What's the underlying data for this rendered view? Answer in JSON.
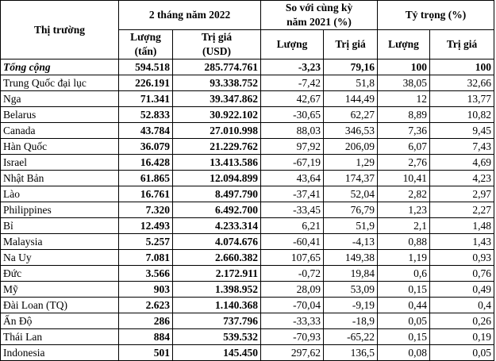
{
  "headers": {
    "market": "Thị trường",
    "period": "2 tháng năm 2022",
    "compare_line1": "So với cùng kỳ",
    "compare_line2": "năm 2021 (%)",
    "share": "Tỷ trọng (%)",
    "vol_line1": "Lượng",
    "vol_line2": "(tấn)",
    "val_line1": "Trị giá",
    "val_line2": "(USD)",
    "cmp_vol": "Lượng",
    "cmp_val": "Trị giá",
    "share_vol": "Lượng",
    "share_val": "Trị giá"
  },
  "rows": [
    {
      "market": "Tổng cộng",
      "volume": "594.518",
      "value": "285.774.761",
      "cmp_volume": "-3,23",
      "cmp_value": "79,16",
      "share_volume": "100",
      "share_value": "100"
    },
    {
      "market": "Trung Quốc đại lục",
      "volume": "226.191",
      "value": "93.338.752",
      "cmp_volume": "-7,42",
      "cmp_value": "51,8",
      "share_volume": "38,05",
      "share_value": "32,66"
    },
    {
      "market": "Nga",
      "volume": "71.341",
      "value": "39.347.862",
      "cmp_volume": "42,67",
      "cmp_value": "144,49",
      "share_volume": "12",
      "share_value": "13,77"
    },
    {
      "market": "Belarus",
      "volume": "52.833",
      "value": "30.922.102",
      "cmp_volume": "-30,65",
      "cmp_value": "62,27",
      "share_volume": "8,89",
      "share_value": "10,82"
    },
    {
      "market": "Canada",
      "volume": "43.784",
      "value": "27.010.998",
      "cmp_volume": "88,03",
      "cmp_value": "346,53",
      "share_volume": "7,36",
      "share_value": "9,45"
    },
    {
      "market": "Hàn Quốc",
      "volume": "36.079",
      "value": "21.229.762",
      "cmp_volume": "97,92",
      "cmp_value": "206,09",
      "share_volume": "6,07",
      "share_value": "7,43"
    },
    {
      "market": "Israel",
      "volume": "16.428",
      "value": "13.413.586",
      "cmp_volume": "-67,19",
      "cmp_value": "1,29",
      "share_volume": "2,76",
      "share_value": "4,69"
    },
    {
      "market": "Nhật Bản",
      "volume": "61.865",
      "value": "12.094.899",
      "cmp_volume": "43,64",
      "cmp_value": "174,37",
      "share_volume": "10,41",
      "share_value": "4,23"
    },
    {
      "market": "Lào",
      "volume": "16.761",
      "value": "8.497.790",
      "cmp_volume": "-37,41",
      "cmp_value": "52,04",
      "share_volume": "2,82",
      "share_value": "2,97"
    },
    {
      "market": "Philippines",
      "volume": "7.320",
      "value": "6.492.700",
      "cmp_volume": "-33,45",
      "cmp_value": "76,79",
      "share_volume": "1,23",
      "share_value": "2,27"
    },
    {
      "market": "Bỉ",
      "volume": "12.493",
      "value": "4.233.314",
      "cmp_volume": "6,21",
      "cmp_value": "51,9",
      "share_volume": "2,1",
      "share_value": "1,48"
    },
    {
      "market": "Malaysia",
      "volume": "5.257",
      "value": "4.074.676",
      "cmp_volume": "-60,41",
      "cmp_value": "-4,13",
      "share_volume": "0,88",
      "share_value": "1,43"
    },
    {
      "market": "Na Uy",
      "volume": "7.081",
      "value": "2.660.382",
      "cmp_volume": "107,65",
      "cmp_value": "149,38",
      "share_volume": "1,19",
      "share_value": "0,93"
    },
    {
      "market": "Đức",
      "volume": "3.566",
      "value": "2.172.911",
      "cmp_volume": "-0,72",
      "cmp_value": "19,84",
      "share_volume": "0,6",
      "share_value": "0,76"
    },
    {
      "market": "Mỹ",
      "volume": "903",
      "value": "1.398.952",
      "cmp_volume": "28,09",
      "cmp_value": "53,09",
      "share_volume": "0,15",
      "share_value": "0,49"
    },
    {
      "market": "Đài Loan (TQ)",
      "volume": "2.623",
      "value": "1.140.368",
      "cmp_volume": "-70,04",
      "cmp_value": "-9,19",
      "share_volume": "0,44",
      "share_value": "0,4"
    },
    {
      "market": "Ấn Độ",
      "volume": "286",
      "value": "737.796",
      "cmp_volume": "-33,33",
      "cmp_value": "-18,9",
      "share_volume": "0,05",
      "share_value": "0,26"
    },
    {
      "market": "Thái Lan",
      "volume": "884",
      "value": "539.532",
      "cmp_volume": "-70,93",
      "cmp_value": "-65,22",
      "share_volume": "0,15",
      "share_value": "0,19"
    },
    {
      "market": "Indonesia",
      "volume": "501",
      "value": "145.450",
      "cmp_volume": "297,62",
      "cmp_value": "136,5",
      "share_volume": "0,08",
      "share_value": "0,05"
    }
  ]
}
